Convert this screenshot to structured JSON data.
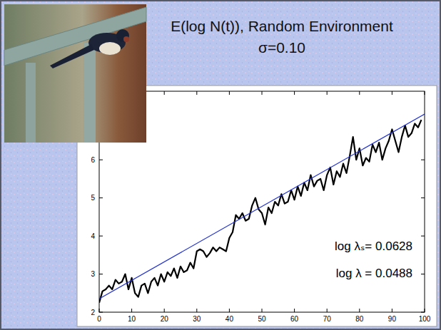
{
  "chart_data": {
    "type": "line",
    "title": "E(log N(t)), Random Environment",
    "subtitle": "σ=0.10",
    "annotations": [
      "log λₛ= 0.0628",
      "log λ = 0.0488"
    ],
    "x": [
      0,
      1,
      2,
      3,
      4,
      5,
      6,
      7,
      8,
      9,
      10,
      11,
      12,
      13,
      14,
      15,
      16,
      17,
      18,
      19,
      20,
      21,
      22,
      23,
      24,
      25,
      26,
      27,
      28,
      29,
      30,
      31,
      32,
      33,
      34,
      35,
      36,
      37,
      38,
      39,
      40,
      41,
      42,
      43,
      44,
      45,
      46,
      47,
      48,
      49,
      50,
      51,
      52,
      53,
      54,
      55,
      56,
      57,
      58,
      59,
      60,
      61,
      62,
      63,
      64,
      65,
      66,
      67,
      68,
      69,
      70,
      71,
      72,
      73,
      74,
      75,
      76,
      77,
      78,
      79,
      80,
      81,
      82,
      83,
      84,
      85,
      86,
      87,
      88,
      89,
      90,
      91,
      92,
      93,
      94,
      95,
      96,
      97,
      98,
      99
    ],
    "series": [
      {
        "color": "#000000",
        "line_style": "solid",
        "values": [
          2.25,
          2.55,
          2.6,
          2.7,
          2.6,
          2.85,
          2.75,
          2.8,
          3.0,
          2.6,
          2.9,
          2.5,
          2.4,
          2.7,
          2.75,
          2.5,
          2.8,
          2.9,
          2.7,
          3.0,
          2.8,
          3.05,
          2.95,
          3.15,
          2.9,
          3.2,
          3.05,
          3.1,
          3.3,
          3.15,
          3.6,
          3.65,
          3.6,
          3.45,
          3.55,
          3.7,
          3.6,
          3.7,
          3.65,
          3.6,
          3.95,
          4.1,
          4.55,
          4.45,
          4.6,
          4.4,
          4.45,
          4.8,
          5.0,
          4.7,
          4.6,
          4.3,
          4.75,
          4.6,
          4.9,
          4.8,
          5.1,
          4.85,
          4.9,
          5.2,
          4.95,
          5.3,
          5.05,
          5.4,
          5.2,
          5.6,
          5.3,
          5.45,
          5.5,
          5.2,
          5.6,
          5.8,
          5.35,
          5.7,
          5.55,
          5.9,
          5.65,
          6.1,
          6.6,
          6.0,
          6.3,
          5.85,
          6.05,
          5.95,
          6.4,
          6.2,
          6.45,
          6.0,
          6.3,
          6.5,
          6.8,
          6.5,
          6.2,
          6.6,
          6.9,
          6.6,
          6.7,
          6.95,
          6.85,
          7.05
        ]
      },
      {
        "color": "#2233d0",
        "line_style": "solid",
        "x": [
          0,
          100
        ],
        "values": [
          2.35,
          7.2
        ]
      }
    ],
    "xlim": [
      0,
      100
    ],
    "xticks": [
      0,
      10,
      20,
      30,
      40,
      50,
      60,
      70,
      80,
      90,
      100
    ],
    "ylim": [
      2,
      7.8
    ],
    "yticks": [
      2,
      3,
      4,
      5,
      6
    ],
    "grid": false
  }
}
